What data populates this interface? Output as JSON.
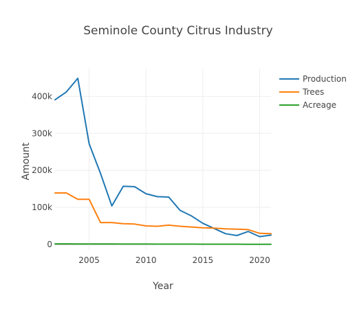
{
  "chart_data": {
    "type": "line",
    "title": "Seminole County Citrus Industry",
    "xlabel": "Year",
    "ylabel": "Amount",
    "xlim": [
      2002,
      2021
    ],
    "ylim": [
      -15000,
      475000
    ],
    "x_ticks": [
      2005,
      2010,
      2015,
      2020
    ],
    "y_ticks": [
      0,
      100000,
      200000,
      300000,
      400000
    ],
    "y_tick_labels": [
      "0",
      "100k",
      "200k",
      "300k",
      "400k"
    ],
    "grid": true,
    "legend_position": "top-right",
    "x": [
      2002,
      2003,
      2004,
      2005,
      2006,
      2007,
      2008,
      2009,
      2010,
      2011,
      2012,
      2013,
      2014,
      2015,
      2016,
      2017,
      2018,
      2019,
      2020,
      2021
    ],
    "series": [
      {
        "name": "Production",
        "color": "#1f77b4",
        "values": [
          391000,
          412000,
          449000,
          272000,
          192000,
          104000,
          157000,
          156000,
          137000,
          129000,
          128000,
          92000,
          77000,
          57000,
          43000,
          29000,
          24000,
          35000,
          21000,
          25000
        ]
      },
      {
        "name": "Trees",
        "color": "#ff7f0e",
        "values": [
          139000,
          139000,
          122000,
          122000,
          59000,
          59000,
          56000,
          55000,
          50000,
          49000,
          52000,
          49000,
          47000,
          45000,
          44000,
          42000,
          41000,
          40000,
          30000,
          29000
        ]
      },
      {
        "name": "Acreage",
        "color": "#2ca02c",
        "values": [
          1500,
          1450,
          1400,
          1350,
          1250,
          1150,
          1050,
          950,
          900,
          850,
          800,
          750,
          700,
          650,
          600,
          550,
          500,
          450,
          400,
          350
        ]
      }
    ]
  }
}
